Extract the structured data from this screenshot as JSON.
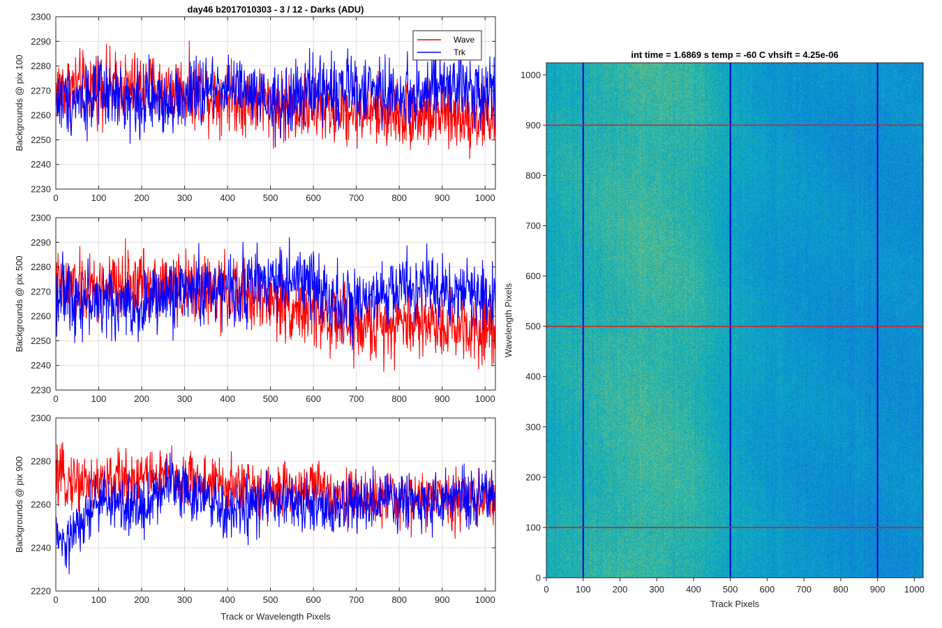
{
  "chart_data": [
    {
      "type": "line",
      "title": "day46 b2017010303 - 3 / 12 - Darks (ADU)",
      "xlabel": "",
      "ylabel": "Backgrounds @ pix 100",
      "xlim": [
        0,
        1024
      ],
      "ylim": [
        2230,
        2300
      ],
      "xticks": [
        0,
        100,
        200,
        300,
        400,
        500,
        600,
        700,
        800,
        900,
        1000
      ],
      "yticks": [
        2230,
        2240,
        2250,
        2260,
        2270,
        2280,
        2290,
        2300
      ],
      "grid": true,
      "legend": "top-right",
      "series": [
        {
          "name": "Wave",
          "color": "#ff0000",
          "x": [
            0,
            100,
            200,
            300,
            400,
            500,
            600,
            700,
            800,
            900,
            1024
          ],
          "values": [
            2271,
            2272,
            2271,
            2270,
            2268,
            2265,
            2263,
            2262,
            2261,
            2260,
            2259
          ]
        },
        {
          "name": "Trk",
          "color": "#0000ff",
          "x": [
            0,
            100,
            200,
            300,
            400,
            500,
            600,
            700,
            800,
            900,
            1024
          ],
          "values": [
            2266,
            2268,
            2266,
            2267,
            2273,
            2263,
            2270,
            2271,
            2268,
            2271,
            2271
          ]
        }
      ]
    },
    {
      "type": "line",
      "xlabel": "",
      "ylabel": "Backgrounds @ pix 500",
      "xlim": [
        0,
        1024
      ],
      "ylim": [
        2230,
        2300
      ],
      "xticks": [
        0,
        100,
        200,
        300,
        400,
        500,
        600,
        700,
        800,
        900,
        1000
      ],
      "yticks": [
        2230,
        2240,
        2250,
        2260,
        2270,
        2280,
        2290,
        2300
      ],
      "grid": true,
      "series": [
        {
          "name": "Wave",
          "color": "#ff0000",
          "x": [
            0,
            100,
            200,
            300,
            400,
            500,
            600,
            700,
            800,
            900,
            1024
          ],
          "values": [
            2272,
            2270,
            2274,
            2271,
            2270,
            2266,
            2262,
            2255,
            2258,
            2257,
            2255
          ]
        },
        {
          "name": "Trk",
          "color": "#0000ff",
          "x": [
            0,
            100,
            200,
            300,
            400,
            500,
            600,
            700,
            800,
            900,
            1024
          ],
          "values": [
            2270,
            2266,
            2264,
            2272,
            2270,
            2276,
            2273,
            2262,
            2272,
            2271,
            2268
          ]
        }
      ]
    },
    {
      "type": "line",
      "xlabel": "Track or Wavelength Pixels",
      "ylabel": "Backgrounds @ pix 900",
      "xlim": [
        0,
        1024
      ],
      "ylim": [
        2220,
        2300
      ],
      "xticks": [
        0,
        100,
        200,
        300,
        400,
        500,
        600,
        700,
        800,
        900,
        1000
      ],
      "yticks": [
        2220,
        2240,
        2260,
        2280,
        2300
      ],
      "grid": true,
      "series": [
        {
          "name": "Wave",
          "color": "#ff0000",
          "x": [
            0,
            100,
            200,
            300,
            400,
            500,
            600,
            700,
            800,
            900,
            1024
          ],
          "values": [
            2272,
            2270,
            2273,
            2272,
            2268,
            2266,
            2268,
            2263,
            2262,
            2263,
            2262
          ]
        },
        {
          "name": "Trk",
          "color": "#0000ff",
          "x": [
            0,
            20,
            100,
            200,
            270,
            300,
            400,
            500,
            600,
            700,
            800,
            900,
            1024
          ],
          "values": [
            2245,
            2240,
            2262,
            2258,
            2272,
            2268,
            2255,
            2262,
            2258,
            2260,
            2262,
            2262,
            2264
          ]
        }
      ]
    },
    {
      "type": "heatmap",
      "title": "int time = 1.6869 s    temp = -60 C    vhsift = 4.25e-06",
      "xlabel": "Track Pixels",
      "ylabel": "Wavelength Pixels",
      "xlim": [
        0,
        1024
      ],
      "ylim": [
        0,
        1024
      ],
      "xticks": [
        0,
        100,
        200,
        300,
        400,
        500,
        600,
        700,
        800,
        900,
        1000
      ],
      "yticks": [
        0,
        100,
        200,
        300,
        400,
        500,
        600,
        700,
        800,
        900,
        1000
      ],
      "colormap": "parula",
      "vertical_lines": {
        "x": [
          100,
          500,
          900
        ],
        "color": "#0000cc"
      },
      "horizontal_lines": {
        "y": [
          100,
          500,
          900
        ],
        "color": "#d62020"
      },
      "column_profile": {
        "x": [
          0,
          100,
          200,
          300,
          400,
          500,
          600,
          700,
          800,
          900,
          1024
        ],
        "level": [
          0.58,
          0.62,
          0.66,
          0.68,
          0.64,
          0.55,
          0.5,
          0.48,
          0.46,
          0.45,
          0.46
        ]
      }
    }
  ]
}
